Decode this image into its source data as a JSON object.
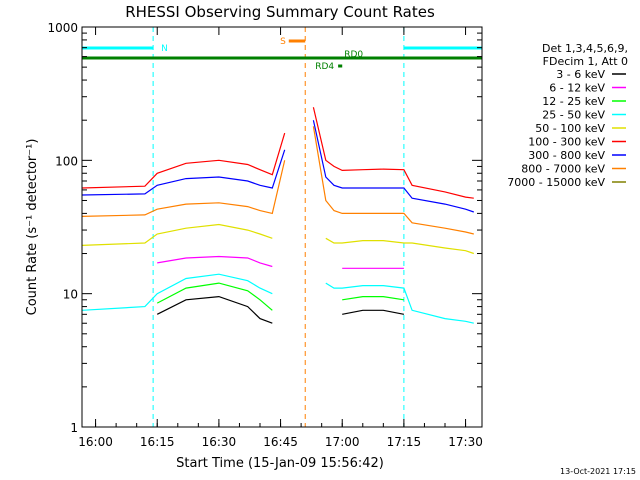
{
  "chart_data": {
    "type": "line",
    "title": "RHESSI Observing Summary Count Rates",
    "xlabel": "Start Time (15-Jan-09 15:56:42)",
    "ylabel": "Count Rate (s⁻¹ detector⁻¹)",
    "y_scale": "log",
    "xlim": [
      "15:56:42",
      "17:34:00"
    ],
    "ylim": [
      1,
      1000
    ],
    "x_ticks": [
      "16:00",
      "16:15",
      "16:30",
      "16:45",
      "17:00",
      "17:15",
      "17:30"
    ],
    "y_ticks": [
      {
        "value": 1,
        "label": "1"
      },
      {
        "value": 10,
        "label": "10"
      },
      {
        "value": 100,
        "label": "100"
      },
      {
        "value": 1000,
        "label": "1000"
      }
    ],
    "legend": {
      "placement": "right",
      "header": [
        "Det 1,3,4,5,6,9,",
        "FDecim 1, Att 0"
      ]
    },
    "series": [
      {
        "name": "3 - 6 keV",
        "color": "#000000",
        "x": [
          "15:56:42",
          "16:12",
          "16:15",
          "16:22",
          "16:30",
          "16:37",
          "16:40",
          "16:43",
          "16:46",
          "16:49",
          "16:52",
          "16:53",
          "16:56",
          "16:58",
          "17:00",
          "17:05",
          "17:10",
          "17:15",
          "17:17",
          "17:25",
          "17:30",
          "17:32"
        ],
        "y": [
          null,
          null,
          7,
          9,
          9.5,
          8,
          6.5,
          6,
          null,
          null,
          null,
          null,
          null,
          null,
          7,
          7.5,
          7.5,
          7,
          null,
          null,
          null,
          null
        ]
      },
      {
        "name": "6 - 12 keV",
        "color": "#ff00ff",
        "x": [
          "15:56:42",
          "16:12",
          "16:15",
          "16:22",
          "16:30",
          "16:37",
          "16:40",
          "16:43",
          "16:46",
          "16:49",
          "16:52",
          "16:53",
          "16:56",
          "16:58",
          "17:00",
          "17:05",
          "17:10",
          "17:15",
          "17:17",
          "17:25",
          "17:30",
          "17:32"
        ],
        "y": [
          null,
          null,
          17,
          18.5,
          19,
          18.5,
          17,
          16,
          null,
          null,
          null,
          null,
          null,
          null,
          15.5,
          15.5,
          15.5,
          15.5,
          null,
          null,
          null,
          null
        ]
      },
      {
        "name": "12 - 25 keV",
        "color": "#00ff00",
        "x": [
          "15:56:42",
          "16:12",
          "16:15",
          "16:22",
          "16:30",
          "16:37",
          "16:40",
          "16:43",
          "16:46",
          "16:49",
          "16:52",
          "16:53",
          "16:56",
          "16:58",
          "17:00",
          "17:05",
          "17:10",
          "17:15",
          "17:17",
          "17:25",
          "17:30",
          "17:32"
        ],
        "y": [
          null,
          null,
          8.5,
          11,
          12,
          10.5,
          9,
          7.5,
          null,
          null,
          null,
          null,
          null,
          null,
          9,
          9.5,
          9.5,
          9,
          null,
          null,
          null,
          null
        ]
      },
      {
        "name": "25 - 50 keV",
        "color": "#00ffff",
        "x": [
          "15:56:42",
          "16:12",
          "16:15",
          "16:22",
          "16:30",
          "16:37",
          "16:40",
          "16:43",
          "16:46",
          "16:49",
          "16:52",
          "16:53",
          "16:56",
          "16:58",
          "17:00",
          "17:05",
          "17:10",
          "17:15",
          "17:17",
          "17:25",
          "17:30",
          "17:32"
        ],
        "y": [
          7.5,
          8,
          10,
          13,
          14,
          12.5,
          11,
          10,
          null,
          null,
          null,
          null,
          12,
          11,
          11,
          11.5,
          11.5,
          11,
          7.5,
          6.5,
          6.2,
          6
        ]
      },
      {
        "name": "50 - 100 keV",
        "color": "#e0e000",
        "x": [
          "15:56:42",
          "16:12",
          "16:15",
          "16:22",
          "16:30",
          "16:37",
          "16:40",
          "16:43",
          "16:46",
          "16:49",
          "16:52",
          "16:53",
          "16:56",
          "16:58",
          "17:00",
          "17:05",
          "17:10",
          "17:15",
          "17:17",
          "17:25",
          "17:30",
          "17:32"
        ],
        "y": [
          23,
          24,
          28,
          31,
          33,
          30,
          28,
          26,
          null,
          null,
          null,
          null,
          26,
          24,
          24,
          25,
          25,
          24,
          24,
          22,
          21,
          20
        ]
      },
      {
        "name": "100 - 300 keV",
        "color": "#ff0000",
        "x": [
          "15:56:42",
          "16:12",
          "16:15",
          "16:22",
          "16:30",
          "16:37",
          "16:40",
          "16:43",
          "16:46",
          "16:49",
          "16:52",
          "16:53",
          "16:56",
          "16:58",
          "17:00",
          "17:05",
          "17:10",
          "17:15",
          "17:17",
          "17:25",
          "17:30",
          "17:32"
        ],
        "y": [
          62,
          64,
          80,
          95,
          100,
          93,
          85,
          78,
          160,
          null,
          null,
          250,
          100,
          90,
          84,
          85,
          86,
          85,
          65,
          58,
          53,
          52
        ]
      },
      {
        "name": "300 - 800 keV",
        "color": "#0000ff",
        "x": [
          "15:56:42",
          "16:12",
          "16:15",
          "16:22",
          "16:30",
          "16:37",
          "16:40",
          "16:43",
          "16:46",
          "16:49",
          "16:52",
          "16:53",
          "16:56",
          "16:58",
          "17:00",
          "17:05",
          "17:10",
          "17:15",
          "17:17",
          "17:25",
          "17:30",
          "17:32"
        ],
        "y": [
          55,
          56,
          65,
          73,
          75,
          70,
          65,
          62,
          120,
          null,
          null,
          200,
          75,
          65,
          62,
          62,
          62,
          62,
          52,
          47,
          43,
          41
        ]
      },
      {
        "name": "800 - 7000 keV",
        "color": "#ff8000",
        "x": [
          "15:56:42",
          "16:12",
          "16:15",
          "16:22",
          "16:30",
          "16:37",
          "16:40",
          "16:43",
          "16:46",
          "16:49",
          "16:52",
          "16:53",
          "16:56",
          "16:58",
          "17:00",
          "17:05",
          "17:10",
          "17:15",
          "17:17",
          "17:25",
          "17:30",
          "17:32"
        ],
        "y": [
          38,
          39,
          43,
          47,
          48,
          45,
          42,
          40,
          100,
          null,
          null,
          180,
          50,
          42,
          40,
          40,
          40,
          40,
          34,
          31,
          29,
          28
        ]
      },
      {
        "name": "7000 - 15000 keV",
        "color": "#808000",
        "x": [
          "15:56:42",
          "16:12",
          "16:15",
          "16:22",
          "16:30",
          "16:37",
          "16:40",
          "16:43",
          "16:46",
          "16:49",
          "16:52",
          "16:53",
          "16:56",
          "16:58",
          "17:00",
          "17:05",
          "17:10",
          "17:15",
          "17:17",
          "17:25",
          "17:30",
          "17:32"
        ],
        "y": [
          null,
          null,
          null,
          null,
          null,
          null,
          null,
          null,
          null,
          null,
          null,
          null,
          null,
          null,
          null,
          null,
          null,
          null,
          null,
          null,
          null,
          null
        ]
      }
    ],
    "annotations": [
      {
        "label": "N",
        "color": "#00ffff",
        "intervals": [
          [
            "15:56:42",
            "16:14"
          ],
          [
            "17:15",
            "17:34"
          ]
        ]
      },
      {
        "label": "S",
        "color": "#ff8000",
        "intervals": [
          [
            "16:47",
            "16:51"
          ]
        ]
      },
      {
        "label": "RD0",
        "color": "#008000",
        "intervals": [
          [
            "15:56:42",
            "17:34"
          ]
        ]
      },
      {
        "label": "RD4",
        "color": "#008000",
        "intervals": [
          [
            "16:59",
            "17:00"
          ]
        ]
      }
    ]
  },
  "footer": {
    "timestamp": "13-Oct-2021 17:15"
  }
}
